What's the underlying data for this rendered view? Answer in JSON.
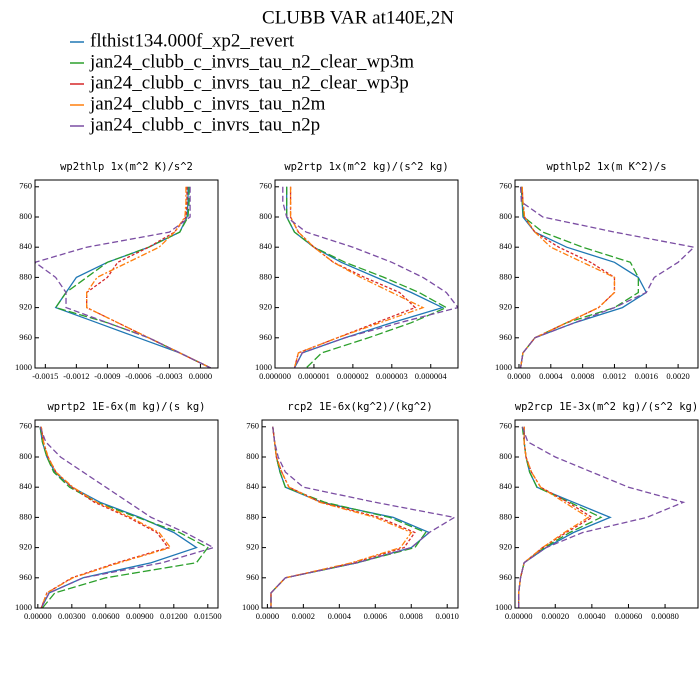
{
  "title": "CLUBB VAR at140E,2N",
  "legend": [
    {
      "name": "flthist134.000f_xp2_revert",
      "color": "#1f77b4"
    },
    {
      "name": "jan24_clubb_c_invrs_tau_n2_clear_wp3m",
      "color": "#2ca02c"
    },
    {
      "name": "jan24_clubb_c_invrs_tau_n2_clear_wp3p",
      "color": "#d62728"
    },
    {
      "name": "jan24_clubb_c_invrs_tau_n2m",
      "color": "#ff7f0e"
    },
    {
      "name": "jan24_clubb_c_invrs_tau_n2p",
      "color": "#7b4ea3"
    }
  ],
  "chart_data": [
    {
      "type": "line",
      "title": "wp2thlp  1x(m^2 K)/s^2",
      "y": [
        760,
        780,
        800,
        820,
        840,
        860,
        880,
        900,
        920,
        940,
        960,
        980,
        1000
      ],
      "xlim": [
        -0.0016,
        0.00017
      ],
      "ylim": [
        751,
        1000
      ],
      "y_inverted": true,
      "xticks": [
        -0.0015,
        -0.0012,
        -0.0009,
        -0.0006,
        -0.0003,
        {
          "value": 0,
          "label": "0.0000"
        }
      ],
      "yticks": [
        760,
        800,
        840,
        880,
        920,
        960,
        1000
      ],
      "series": [
        {
          "values": [
            -0.00012,
            -0.00012,
            -0.00013,
            -0.0002,
            -0.0005,
            -0.0009,
            -0.0012,
            -0.0013,
            -0.0014,
            -0.001,
            -0.0006,
            -0.0002,
            0.0001
          ]
        },
        {
          "values": [
            -0.00011,
            -0.00011,
            -0.00012,
            -0.0002,
            -0.0005,
            -0.0009,
            -0.0011,
            -0.0013,
            -0.0014,
            -0.0009,
            -0.0005,
            -0.0002,
            0.0001
          ]
        },
        {
          "values": [
            -0.00013,
            -0.00013,
            -0.00014,
            -0.00025,
            -0.0005,
            -0.0008,
            -0.0009,
            -0.0011,
            -0.0011,
            -0.0008,
            -0.0005,
            -0.0002,
            0.0001
          ]
        },
        {
          "values": [
            -0.00014,
            -0.00014,
            -0.00015,
            -0.00025,
            -0.0004,
            -0.0007,
            -0.001,
            -0.0011,
            -0.0011,
            -0.0008,
            -0.0005,
            -0.0002,
            0.0001
          ]
        },
        {
          "values": [
            -0.0001,
            -0.0001,
            -0.0001,
            -0.0003,
            -0.0011,
            -0.0016,
            -0.0014,
            -0.0013,
            -0.0013,
            -0.0009,
            -0.0005,
            -0.0002,
            0.0001
          ]
        }
      ]
    },
    {
      "type": "line",
      "title": "wp2rtp  1x(m^2 kg)/(s^2 kg)",
      "y": [
        760,
        780,
        800,
        820,
        840,
        860,
        880,
        900,
        920,
        940,
        960,
        980,
        1000
      ],
      "xlim": [
        0,
        4.7e-06
      ],
      "ylim": [
        751,
        1000
      ],
      "y_inverted": true,
      "xticks": [
        {
          "value": 0,
          "label": "0.000000"
        },
        {
          "value": 1e-06,
          "label": "0.000001"
        },
        {
          "value": 2e-06,
          "label": "0.000002"
        },
        {
          "value": 3e-06,
          "label": "0.000003"
        },
        {
          "value": 4e-06,
          "label": "0.000004"
        }
      ],
      "yticks": [
        760,
        800,
        840,
        880,
        920,
        960,
        1000
      ],
      "series": [
        {
          "values": [
            3e-07,
            3e-07,
            3e-07,
            5e-07,
            1e-06,
            1.7e-06,
            2.6e-06,
            3.5e-06,
            4.3e-06,
            3e-06,
            1.8e-06,
            7e-07,
            5e-07
          ]
        },
        {
          "values": [
            3e-07,
            3e-07,
            3e-07,
            5e-07,
            1e-06,
            1.8e-06,
            2.8e-06,
            3.7e-06,
            4.4e-06,
            3.5e-06,
            2.4e-06,
            1.2e-06,
            8e-07
          ]
        },
        {
          "values": [
            4e-07,
            4e-07,
            4e-07,
            6e-07,
            1e-06,
            1.5e-06,
            2.3e-06,
            3.2e-06,
            3.6e-06,
            2.6e-06,
            1.6e-06,
            6e-07,
            5e-07
          ]
        },
        {
          "values": [
            4e-07,
            4e-07,
            4e-07,
            6e-07,
            1e-06,
            1.5e-06,
            2.2e-06,
            3e-06,
            3.8e-06,
            2.7e-06,
            1.6e-06,
            6e-07,
            5e-07
          ]
        },
        {
          "values": [
            2e-07,
            2e-07,
            3e-07,
            8e-07,
            2e-06,
            3e-06,
            3.8e-06,
            4.4e-06,
            4.7e-06,
            3.2e-06,
            1.8e-06,
            7e-07,
            5e-07
          ]
        }
      ]
    },
    {
      "type": "line",
      "title": "wpthlp2  1x(m K^2)/s",
      "y": [
        760,
        780,
        800,
        820,
        840,
        860,
        880,
        900,
        920,
        940,
        960,
        980,
        1000
      ],
      "xlim": [
        -5e-05,
        0.00225
      ],
      "ylim": [
        751,
        1000
      ],
      "y_inverted": true,
      "xticks": [
        {
          "value": 0,
          "label": "0.0000"
        },
        0.0004,
        0.0008,
        0.0012,
        0.0016,
        {
          "value": 0.002,
          "label": "0.0020"
        }
      ],
      "yticks": [
        760,
        800,
        840,
        880,
        920,
        960,
        1000
      ],
      "series": [
        {
          "values": [
            3e-05,
            4e-05,
            5e-05,
            0.0002,
            0.0006,
            0.0012,
            0.0015,
            0.0016,
            0.0013,
            0.0007,
            0.0002,
            5e-05,
            2e-05
          ]
        },
        {
          "values": [
            3e-05,
            4e-05,
            6e-05,
            0.0003,
            0.0008,
            0.0014,
            0.0015,
            0.0015,
            0.0012,
            0.0006,
            0.0002,
            5e-05,
            2e-05
          ]
        },
        {
          "values": [
            4e-05,
            5e-05,
            7e-05,
            0.0002,
            0.0005,
            0.0009,
            0.0012,
            0.0012,
            0.001,
            0.0006,
            0.0002,
            5e-05,
            2e-05
          ]
        },
        {
          "values": [
            4e-05,
            5e-05,
            7e-05,
            0.0002,
            0.0004,
            0.0008,
            0.0012,
            0.0012,
            0.001,
            0.0006,
            0.0002,
            5e-05,
            2e-05
          ]
        },
        {
          "values": [
            2e-05,
            3e-05,
            0.0003,
            0.0012,
            0.0022,
            0.002,
            0.0017,
            0.0016,
            0.0012,
            0.0007,
            0.0002,
            5e-05,
            2e-05
          ]
        }
      ]
    },
    {
      "type": "line",
      "title": "wprtp2  1E-6x(m kg)/(s kg)",
      "y": [
        760,
        780,
        800,
        820,
        840,
        860,
        880,
        900,
        920,
        940,
        960,
        980,
        1000
      ],
      "xlim": [
        -0.00025,
        0.0159
      ],
      "ylim": [
        751,
        1000
      ],
      "y_inverted": true,
      "xticks": [
        {
          "value": 0,
          "label": "0.00000"
        },
        {
          "value": 0.003,
          "label": "0.00300"
        },
        {
          "value": 0.006,
          "label": "0.00600"
        },
        {
          "value": 0.009,
          "label": "0.00900"
        },
        {
          "value": 0.012,
          "label": "0.01200"
        },
        {
          "value": 0.015,
          "label": "0.01500"
        }
      ],
      "yticks": [
        760,
        800,
        840,
        880,
        920,
        960,
        1000
      ],
      "series": [
        {
          "values": [
            0.0002,
            0.0004,
            0.0008,
            0.0015,
            0.003,
            0.0055,
            0.009,
            0.012,
            0.014,
            0.01,
            0.004,
            0.001,
            0.0003
          ]
        },
        {
          "values": [
            0.0002,
            0.0004,
            0.0008,
            0.0014,
            0.0028,
            0.0052,
            0.0088,
            0.0125,
            0.015,
            0.014,
            0.006,
            0.0015,
            0.0004
          ]
        },
        {
          "values": [
            0.0003,
            0.0005,
            0.0009,
            0.0016,
            0.003,
            0.005,
            0.008,
            0.0105,
            0.0115,
            0.007,
            0.003,
            0.0008,
            0.0003
          ]
        },
        {
          "values": [
            0.0003,
            0.0005,
            0.0009,
            0.0016,
            0.0031,
            0.0052,
            0.0082,
            0.0107,
            0.0117,
            0.0072,
            0.0031,
            0.0008,
            0.0003
          ]
        },
        {
          "values": [
            0.0002,
            0.0007,
            0.002,
            0.004,
            0.006,
            0.008,
            0.01,
            0.013,
            0.0155,
            0.011,
            0.004,
            0.001,
            0.0003
          ]
        }
      ]
    },
    {
      "type": "line",
      "title": "rcp2  1E-6x(kg^2)/(kg^2)",
      "y": [
        760,
        780,
        800,
        820,
        840,
        860,
        880,
        900,
        920,
        940,
        960,
        980,
        1000
      ],
      "xlim": [
        -3e-05,
        0.00106
      ],
      "ylim": [
        751,
        1000
      ],
      "y_inverted": true,
      "xticks": [
        {
          "value": 0,
          "label": "0.0000"
        },
        0.0002,
        0.0004,
        0.0006,
        0.0008,
        {
          "value": 0.001,
          "label": "0.0010"
        }
      ],
      "yticks": [
        760,
        800,
        840,
        880,
        920,
        960,
        1000
      ],
      "series": [
        {
          "values": [
            3e-05,
            4e-05,
            5e-05,
            7e-05,
            0.0001,
            0.0003,
            0.0007,
            0.0009,
            0.0008,
            0.0005,
            0.0001,
            2e-05,
            2e-05
          ]
        },
        {
          "values": [
            3e-05,
            4e-05,
            5e-05,
            7e-05,
            0.0001,
            0.00032,
            0.00068,
            0.00088,
            0.00082,
            0.0005,
            0.0001,
            2e-05,
            2e-05
          ]
        },
        {
          "values": [
            3e-05,
            4e-05,
            5e-05,
            8e-05,
            0.00012,
            0.0003,
            0.00062,
            0.00082,
            0.00076,
            0.00048,
            0.0001,
            2e-05,
            2e-05
          ]
        },
        {
          "values": [
            3e-05,
            4e-05,
            5e-05,
            8e-05,
            0.00012,
            0.00029,
            0.0006,
            0.0008,
            0.00074,
            0.00047,
            0.0001,
            2e-05,
            2e-05
          ]
        },
        {
          "values": [
            3e-05,
            4e-05,
            6e-05,
            0.0001,
            0.0002,
            0.0006,
            0.00104,
            0.0009,
            0.0008,
            0.0005,
            0.0001,
            2e-05,
            2e-05
          ]
        }
      ]
    },
    {
      "type": "line",
      "title": "wp2rcp  1E-3x(m^2 kg)/(s^2 kg)",
      "y": [
        760,
        780,
        800,
        820,
        840,
        860,
        880,
        900,
        920,
        940,
        960,
        980,
        1000
      ],
      "xlim": [
        -2e-05,
        0.00098
      ],
      "ylim": [
        751,
        1000
      ],
      "y_inverted": true,
      "xticks": [
        {
          "value": 0,
          "label": "0.00000"
        },
        {
          "value": 0.0002,
          "label": "0.00020"
        },
        {
          "value": 0.0004,
          "label": "0.00040"
        },
        {
          "value": 0.0006,
          "label": "0.00060"
        },
        {
          "value": 0.0008,
          "label": "0.00080"
        }
      ],
      "yticks": [
        760,
        800,
        840,
        880,
        920,
        960,
        1000
      ],
      "series": [
        {
          "values": [
            3e-05,
            3e-05,
            4e-05,
            6e-05,
            0.0001,
            0.0003,
            0.0005,
            0.0003,
            0.00015,
            3e-05,
            1e-05,
            0,
            0
          ]
        },
        {
          "values": [
            2e-05,
            3e-05,
            4e-05,
            6e-05,
            0.0001,
            0.00028,
            0.00045,
            0.00028,
            0.00014,
            3e-05,
            1e-05,
            0,
            0
          ]
        },
        {
          "values": [
            3e-05,
            3e-05,
            4e-05,
            7e-05,
            0.00012,
            0.00027,
            0.0004,
            0.00026,
            0.00013,
            3e-05,
            1e-05,
            0,
            0
          ]
        },
        {
          "values": [
            3e-05,
            3e-05,
            4e-05,
            7e-05,
            0.00012,
            0.00025,
            0.00038,
            0.00025,
            0.00013,
            3e-05,
            1e-05,
            0,
            0
          ]
        },
        {
          "values": [
            2e-05,
            5e-05,
            0.0002,
            0.0004,
            0.0006,
            0.0009,
            0.0007,
            0.00035,
            0.00015,
            3e-05,
            1e-05,
            0,
            0
          ]
        }
      ]
    }
  ]
}
